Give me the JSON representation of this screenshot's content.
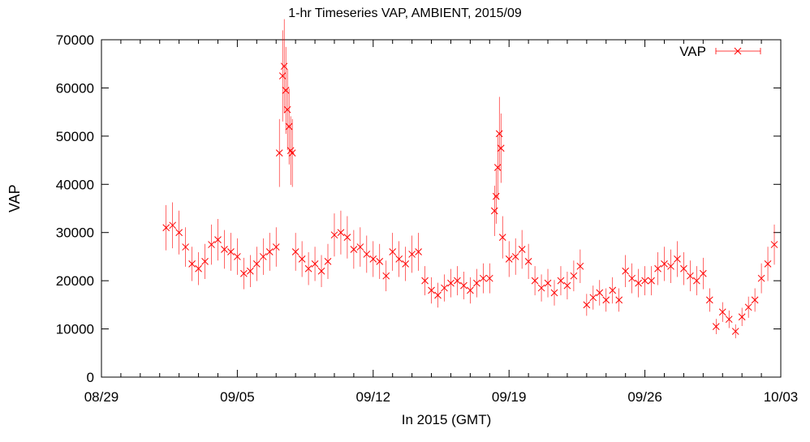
{
  "chart_data": {
    "type": "scatter",
    "title": "1-hr Timeseries VAP, AMBIENT, 2015/09",
    "xlabel": "In 2015 (GMT)",
    "ylabel": "VAP",
    "x_ticks": [
      "08/29",
      "09/05",
      "09/12",
      "09/19",
      "09/26",
      "10/03"
    ],
    "x_range": [
      "2015-08-29",
      "2015-10-03"
    ],
    "y_ticks": [
      0,
      10000,
      20000,
      30000,
      40000,
      50000,
      60000,
      70000
    ],
    "ylim": [
      0,
      70000
    ],
    "grid": false,
    "legend": {
      "position": "top-right",
      "entries": [
        "VAP"
      ]
    },
    "series": [
      {
        "name": "VAP",
        "color": "#ff0000",
        "marker": "x",
        "error_bars": true,
        "points": [
          [
            "2015-09-01 08:00",
            31000
          ],
          [
            "2015-09-01 16:00",
            31500
          ],
          [
            "2015-09-02 00:00",
            30000
          ],
          [
            "2015-09-02 08:00",
            27000
          ],
          [
            "2015-09-02 16:00",
            23500
          ],
          [
            "2015-09-03 00:00",
            22500
          ],
          [
            "2015-09-03 08:00",
            24000
          ],
          [
            "2015-09-03 16:00",
            27500
          ],
          [
            "2015-09-04 00:00",
            28500
          ],
          [
            "2015-09-04 08:00",
            26500
          ],
          [
            "2015-09-04 16:00",
            26000
          ],
          [
            "2015-09-05 00:00",
            25000
          ],
          [
            "2015-09-05 08:00",
            21500
          ],
          [
            "2015-09-05 16:00",
            22000
          ],
          [
            "2015-09-06 00:00",
            23500
          ],
          [
            "2015-09-06 08:00",
            25000
          ],
          [
            "2015-09-06 16:00",
            26000
          ],
          [
            "2015-09-07 00:00",
            27000
          ],
          [
            "2015-09-07 04:00",
            46500
          ],
          [
            "2015-09-07 08:00",
            62500
          ],
          [
            "2015-09-07 10:00",
            64500
          ],
          [
            "2015-09-07 12:00",
            59500
          ],
          [
            "2015-09-07 14:00",
            55500
          ],
          [
            "2015-09-07 16:00",
            52000
          ],
          [
            "2015-09-07 18:00",
            47000
          ],
          [
            "2015-09-07 20:00",
            46500
          ],
          [
            "2015-09-08 00:00",
            26000
          ],
          [
            "2015-09-08 08:00",
            24500
          ],
          [
            "2015-09-08 16:00",
            22500
          ],
          [
            "2015-09-09 00:00",
            23500
          ],
          [
            "2015-09-09 08:00",
            22000
          ],
          [
            "2015-09-09 16:00",
            24000
          ],
          [
            "2015-09-10 00:00",
            29500
          ],
          [
            "2015-09-10 08:00",
            30000
          ],
          [
            "2015-09-10 16:00",
            29000
          ],
          [
            "2015-09-11 00:00",
            26500
          ],
          [
            "2015-09-11 08:00",
            27000
          ],
          [
            "2015-09-11 16:00",
            25500
          ],
          [
            "2015-09-12 00:00",
            24500
          ],
          [
            "2015-09-12 08:00",
            24000
          ],
          [
            "2015-09-12 16:00",
            21000
          ],
          [
            "2015-09-13 00:00",
            26000
          ],
          [
            "2015-09-13 08:00",
            24500
          ],
          [
            "2015-09-13 16:00",
            23500
          ],
          [
            "2015-09-14 00:00",
            25500
          ],
          [
            "2015-09-14 08:00",
            26000
          ],
          [
            "2015-09-14 16:00",
            20000
          ],
          [
            "2015-09-15 00:00",
            18000
          ],
          [
            "2015-09-15 08:00",
            17000
          ],
          [
            "2015-09-15 16:00",
            18500
          ],
          [
            "2015-09-16 00:00",
            19500
          ],
          [
            "2015-09-16 08:00",
            20000
          ],
          [
            "2015-09-16 16:00",
            19000
          ],
          [
            "2015-09-17 00:00",
            18000
          ],
          [
            "2015-09-17 08:00",
            19500
          ],
          [
            "2015-09-17 16:00",
            20500
          ],
          [
            "2015-09-18 00:00",
            20500
          ],
          [
            "2015-09-18 06:00",
            34500
          ],
          [
            "2015-09-18 08:00",
            37500
          ],
          [
            "2015-09-18 10:00",
            43500
          ],
          [
            "2015-09-18 12:00",
            50500
          ],
          [
            "2015-09-18 14:00",
            47500
          ],
          [
            "2015-09-18 16:00",
            29000
          ],
          [
            "2015-09-19 00:00",
            24500
          ],
          [
            "2015-09-19 08:00",
            25000
          ],
          [
            "2015-09-19 16:00",
            26500
          ],
          [
            "2015-09-20 00:00",
            24000
          ],
          [
            "2015-09-20 08:00",
            20000
          ],
          [
            "2015-09-20 16:00",
            18500
          ],
          [
            "2015-09-21 00:00",
            19500
          ],
          [
            "2015-09-21 08:00",
            17500
          ],
          [
            "2015-09-21 16:00",
            20000
          ],
          [
            "2015-09-22 00:00",
            19000
          ],
          [
            "2015-09-22 08:00",
            21000
          ],
          [
            "2015-09-22 16:00",
            23000
          ],
          [
            "2015-09-23 00:00",
            15000
          ],
          [
            "2015-09-23 08:00",
            16500
          ],
          [
            "2015-09-23 16:00",
            17500
          ],
          [
            "2015-09-24 00:00",
            16000
          ],
          [
            "2015-09-24 08:00",
            18000
          ],
          [
            "2015-09-24 16:00",
            16000
          ],
          [
            "2015-09-25 00:00",
            22000
          ],
          [
            "2015-09-25 08:00",
            20500
          ],
          [
            "2015-09-25 16:00",
            19500
          ],
          [
            "2015-09-26 00:00",
            20000
          ],
          [
            "2015-09-26 08:00",
            20000
          ],
          [
            "2015-09-26 16:00",
            22500
          ],
          [
            "2015-09-27 00:00",
            23500
          ],
          [
            "2015-09-27 08:00",
            23000
          ],
          [
            "2015-09-27 16:00",
            24500
          ],
          [
            "2015-09-28 00:00",
            22500
          ],
          [
            "2015-09-28 08:00",
            21000
          ],
          [
            "2015-09-28 16:00",
            20000
          ],
          [
            "2015-09-29 00:00",
            21500
          ],
          [
            "2015-09-29 08:00",
            16000
          ],
          [
            "2015-09-29 16:00",
            10500
          ],
          [
            "2015-09-30 00:00",
            13500
          ],
          [
            "2015-09-30 08:00",
            12000
          ],
          [
            "2015-09-30 16:00",
            9500
          ],
          [
            "2015-10-01 00:00",
            12500
          ],
          [
            "2015-10-01 08:00",
            14500
          ],
          [
            "2015-10-01 16:00",
            16000
          ],
          [
            "2015-10-02 00:00",
            20500
          ],
          [
            "2015-10-02 08:00",
            23500
          ],
          [
            "2015-10-02 16:00",
            27500
          ]
        ]
      }
    ]
  }
}
